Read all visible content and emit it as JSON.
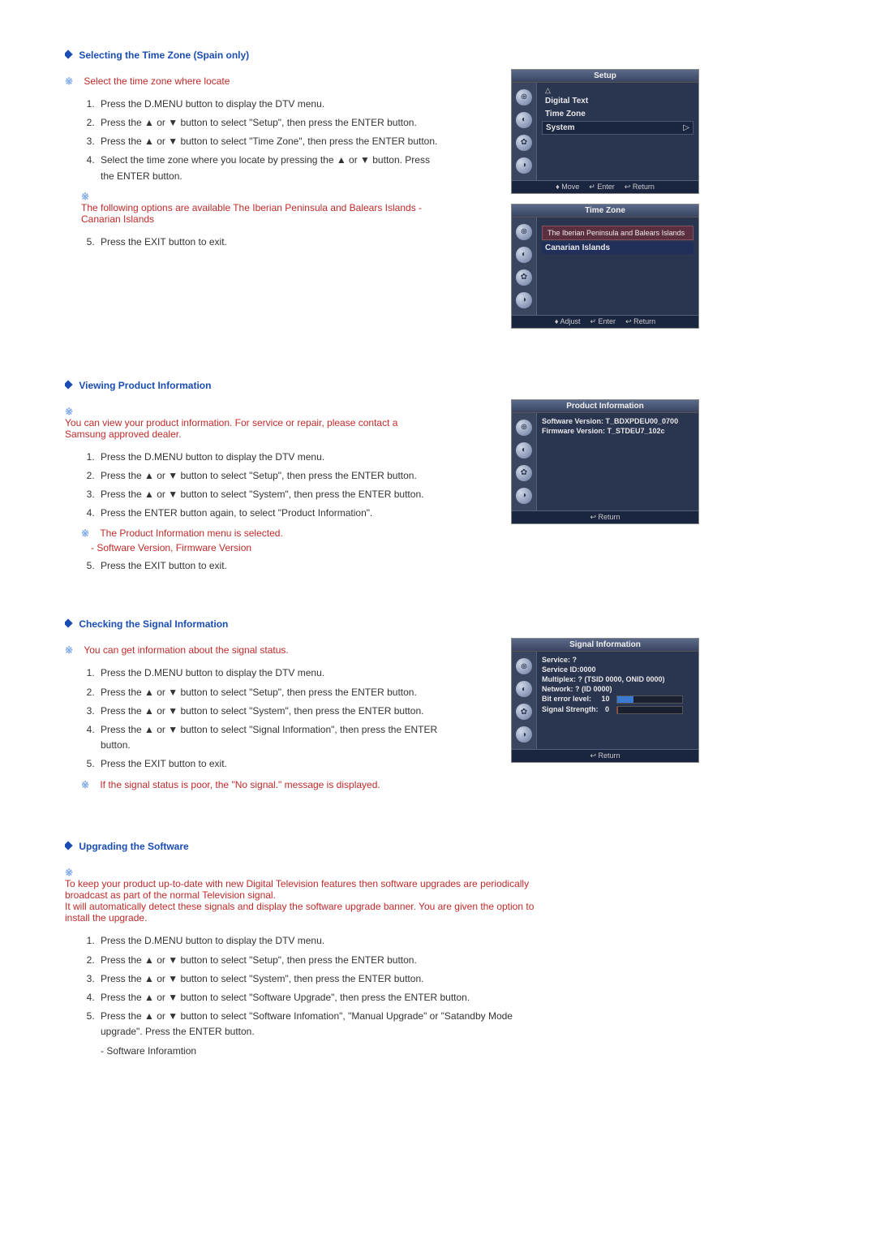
{
  "sections": {
    "timezone": {
      "title": "Selecting the Time Zone (Spain only)",
      "intro": "Select the time zone where locate",
      "steps": [
        "Press the D.MENU button to display the DTV menu.",
        "Press the ▲ or ▼ button to select \"Setup\", then press the ENTER button.",
        "Press the ▲ or ▼ button to select \"Time Zone\", then press the ENTER button.",
        "Select the time zone where you locate by pressing the ▲ or ▼ button. Press the ENTER button."
      ],
      "inline_note": "The following options are available The Iberian Peninsula and Balears Islands - Canarian Islands",
      "step5": "Press the EXIT button to exit."
    },
    "product": {
      "title": "Viewing Product Information",
      "intro": "You can view your product information. For service or repair, please contact a Samsung approved dealer.",
      "steps": [
        "Press the D.MENU button to display the DTV menu.",
        "Press the ▲ or ▼ button to select \"Setup\", then press the ENTER button.",
        "Press the ▲ or ▼ button to select \"System\", then press the ENTER button.",
        "Press the ENTER button again, to select \"Product Information\"."
      ],
      "inline_note": "The Product Information menu is selected.",
      "inline_sub": "- Software Version, Firmware Version",
      "step5": "Press the EXIT button to exit."
    },
    "signal": {
      "title": "Checking the Signal Information",
      "intro": "You can get information about the signal status.",
      "steps": [
        "Press the D.MENU button to display the DTV menu.",
        "Press the ▲ or ▼ button to select \"Setup\", then press the ENTER button.",
        "Press the ▲ or ▼ button to select \"System\", then press the ENTER button.",
        "Press the ▲ or ▼ button to select \"Signal Information\", then press the ENTER button.",
        "Press the EXIT button to exit."
      ],
      "trailing_note": "If the signal status is poor, the \"No signal.\" message is displayed."
    },
    "upgrade": {
      "title": "Upgrading the Software",
      "intro1": "To keep your product up-to-date with new Digital Television features then software upgrades are periodically broadcast as part of the normal Television signal.",
      "intro2": "It will automatically detect these signals and display the software upgrade banner. You are given the option to install the upgrade.",
      "steps": [
        "Press the D.MENU button to display the DTV menu.",
        "Press the ▲ or ▼ button to select \"Setup\", then press the ENTER button.",
        "Press the ▲ or ▼ button to select \"System\", then press the ENTER button.",
        "Press the ▲ or ▼ button to select \"Software Upgrade\", then press the ENTER button.",
        "Press the ▲ or ▼ button to select \"Software Infomation\", \"Manual Upgrade\" or \"Satandby Mode upgrade\". Press the ENTER button."
      ],
      "sub_bullet": "Software Inforamtion"
    }
  },
  "osd": {
    "setup": {
      "title": "Setup",
      "rows": [
        "Digital Text",
        "Time Zone",
        "System"
      ],
      "footer": {
        "move": "♦ Move",
        "enter": "↵ Enter",
        "return": "↩ Return"
      }
    },
    "timezone": {
      "title": "Time Zone",
      "rows": [
        "The Iberian Peninsula and Balears Islands",
        "Canarian Islands"
      ],
      "footer": {
        "adjust": "♦ Adjust",
        "enter": "↵ Enter",
        "return": "↩ Return"
      }
    },
    "product_info": {
      "title": "Product Information",
      "lines": [
        "Software Version: T_BDXPDEU00_0700",
        "Firmware Version: T_STDEU7_102c"
      ],
      "footer": {
        "return": "↩ Return"
      }
    },
    "signal_info": {
      "title": "Signal Information",
      "lines": {
        "service": "Service: ?",
        "service_id": "Service ID:0000",
        "multiplex": "Multiplex: ? (TSID 0000, ONID 0000)",
        "network": "Network: ? (ID 0000)",
        "bit_error_label": "Bit error level:",
        "bit_error_value": "10",
        "signal_label": "Signal Strength:",
        "signal_value": "0"
      },
      "bit_error_pct": 25,
      "signal_pct": 2,
      "footer": {
        "return": "↩ Return"
      }
    }
  },
  "colors": {
    "heading": "#1a4db3",
    "note": "#c02a2a",
    "note_mark": "#7aa5e6",
    "osd_bg": "#2a3550",
    "osd_header": "#5a6a8a"
  }
}
